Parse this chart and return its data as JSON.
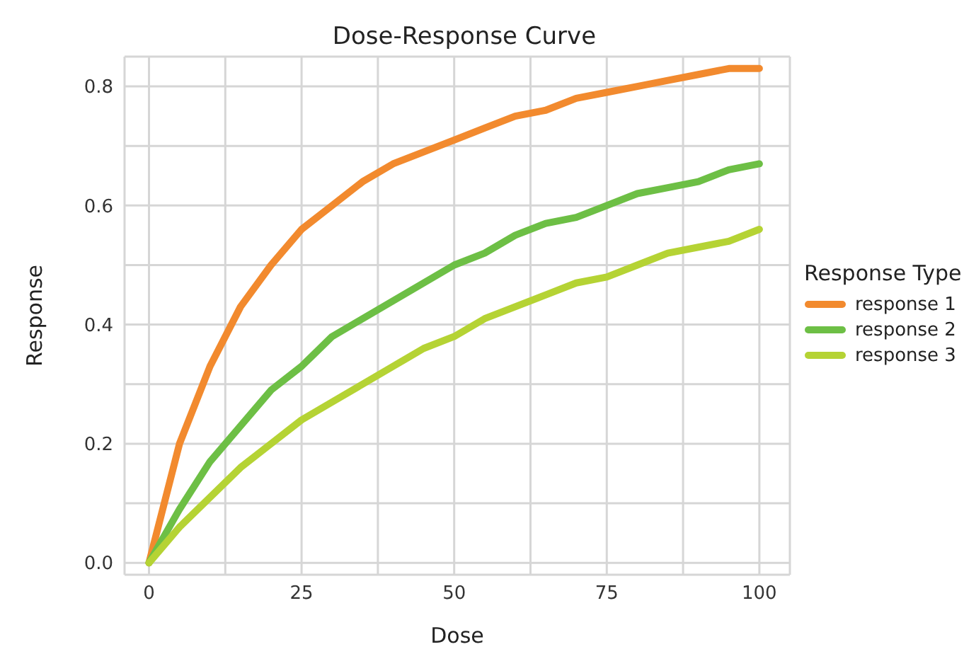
{
  "chart_data": {
    "type": "line",
    "title": "Dose-Response Curve",
    "xlabel": "Dose",
    "ylabel": "Response",
    "legend_title": "Response Type",
    "legend": "right",
    "grid": true,
    "marker": "none",
    "line_style": "solid",
    "x": [
      0,
      5,
      10,
      15,
      20,
      25,
      30,
      35,
      40,
      45,
      50,
      55,
      60,
      65,
      70,
      75,
      80,
      85,
      90,
      95,
      100
    ],
    "xlim": [
      -4,
      105
    ],
    "xticks": [
      0,
      {
        "value": 12.5,
        "label": null
      },
      25,
      {
        "value": 37.5,
        "label": null
      },
      50,
      {
        "value": 62.5,
        "label": null
      },
      75,
      {
        "value": 87.5,
        "label": null
      },
      100
    ],
    "ylim": [
      -0.02,
      0.85
    ],
    "yticks": [
      "0.0",
      {
        "value": 0.1,
        "label": null
      },
      0.2,
      {
        "value": 0.3,
        "label": null
      },
      0.4,
      {
        "value": 0.5,
        "label": null
      },
      0.6,
      {
        "value": 0.7,
        "label": null
      },
      0.8
    ],
    "series": [
      {
        "name": "response 1",
        "color": "#f28a2e",
        "values": [
          0,
          0.2,
          0.33,
          0.43,
          0.5,
          0.56,
          0.6,
          0.64,
          0.67,
          0.69,
          0.71,
          0.73,
          0.75,
          0.76,
          0.78,
          0.79,
          0.8,
          0.81,
          0.82,
          0.83,
          0.83
        ]
      },
      {
        "name": "response 2",
        "color": "#6dbf45",
        "values": [
          0,
          0.09,
          0.17,
          0.23,
          0.29,
          0.33,
          0.38,
          0.41,
          0.44,
          0.47,
          0.5,
          0.52,
          0.55,
          0.57,
          0.58,
          0.6,
          0.62,
          0.63,
          0.64,
          0.66,
          0.67
        ]
      },
      {
        "name": "response 3",
        "color": "#b5d334",
        "values": [
          0,
          0.06,
          0.11,
          0.16,
          0.2,
          0.24,
          0.27,
          0.3,
          0.33,
          0.36,
          0.38,
          0.41,
          0.43,
          0.45,
          0.47,
          0.48,
          0.5,
          0.52,
          0.53,
          0.54,
          0.56
        ]
      }
    ]
  }
}
